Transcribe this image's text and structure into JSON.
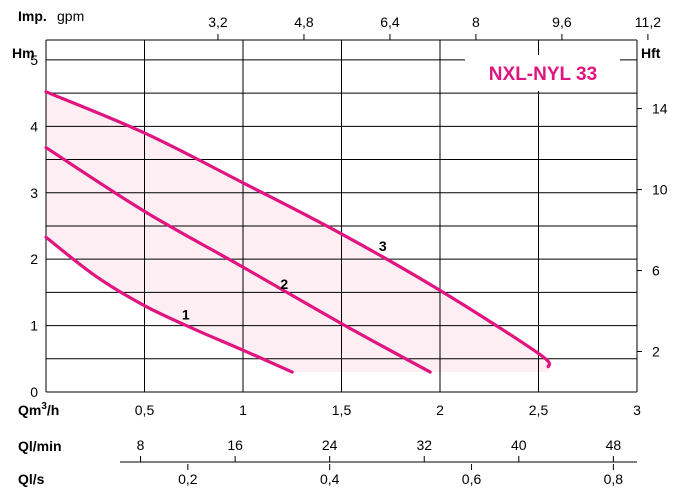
{
  "chart_data": {
    "type": "line",
    "title": "NXL-NYL 33",
    "left_axis": {
      "label": "Hm",
      "ticks": [
        "0",
        "1",
        "2",
        "3",
        "4",
        "5"
      ],
      "range": [
        0,
        5.3
      ]
    },
    "right_axis": {
      "label": "Hft",
      "ticks": [
        "2",
        "6",
        "10",
        "14"
      ],
      "values": [
        2,
        6,
        10,
        14
      ]
    },
    "top_axis": {
      "label_bold": "Imp.",
      "label_unit": "gpm",
      "ticks": [
        "3,2",
        "4,8",
        "6,4",
        "8",
        "9,6",
        "11,2"
      ],
      "values": [
        3.2,
        4.8,
        6.4,
        8,
        9.6,
        11.2
      ]
    },
    "x_axis": {
      "label_main": "Qm",
      "label_sup": "3",
      "label_tail": "/h",
      "ticks": [
        "0,5",
        "1",
        "1,5",
        "2",
        "2,5",
        "3"
      ],
      "values": [
        0.5,
        1,
        1.5,
        2,
        2.5,
        3
      ],
      "range": [
        0,
        3
      ]
    },
    "lmin_axis": {
      "label": "Ql/min",
      "ticks": [
        "8",
        "16",
        "24",
        "32",
        "40",
        "48"
      ],
      "values": [
        8,
        16,
        24,
        32,
        40,
        48
      ]
    },
    "ls_axis": {
      "label": "Ql/s",
      "ticks": [
        "0,2",
        "0,4",
        "0,6",
        "0,8"
      ],
      "values": [
        0.2,
        0.4,
        0.6,
        0.8
      ]
    },
    "series": [
      {
        "name": "1",
        "x": [
          0,
          0.25,
          0.5,
          0.75,
          1.0,
          1.25
        ],
        "y": [
          2.33,
          1.75,
          1.3,
          0.95,
          0.63,
          0.3
        ]
      },
      {
        "name": "2",
        "x": [
          0,
          0.5,
          1.0,
          1.5,
          1.95
        ],
        "y": [
          3.68,
          2.72,
          1.88,
          1.03,
          0.3
        ]
      },
      {
        "name": "3",
        "x": [
          0,
          0.5,
          1.0,
          1.5,
          2.0,
          2.5,
          2.55
        ],
        "y": [
          4.52,
          3.9,
          3.15,
          2.38,
          1.53,
          0.58,
          0.38
        ]
      }
    ],
    "colors": {
      "curve": "#e0157f",
      "fill": "#fdeef4",
      "grid": "#000000"
    }
  }
}
